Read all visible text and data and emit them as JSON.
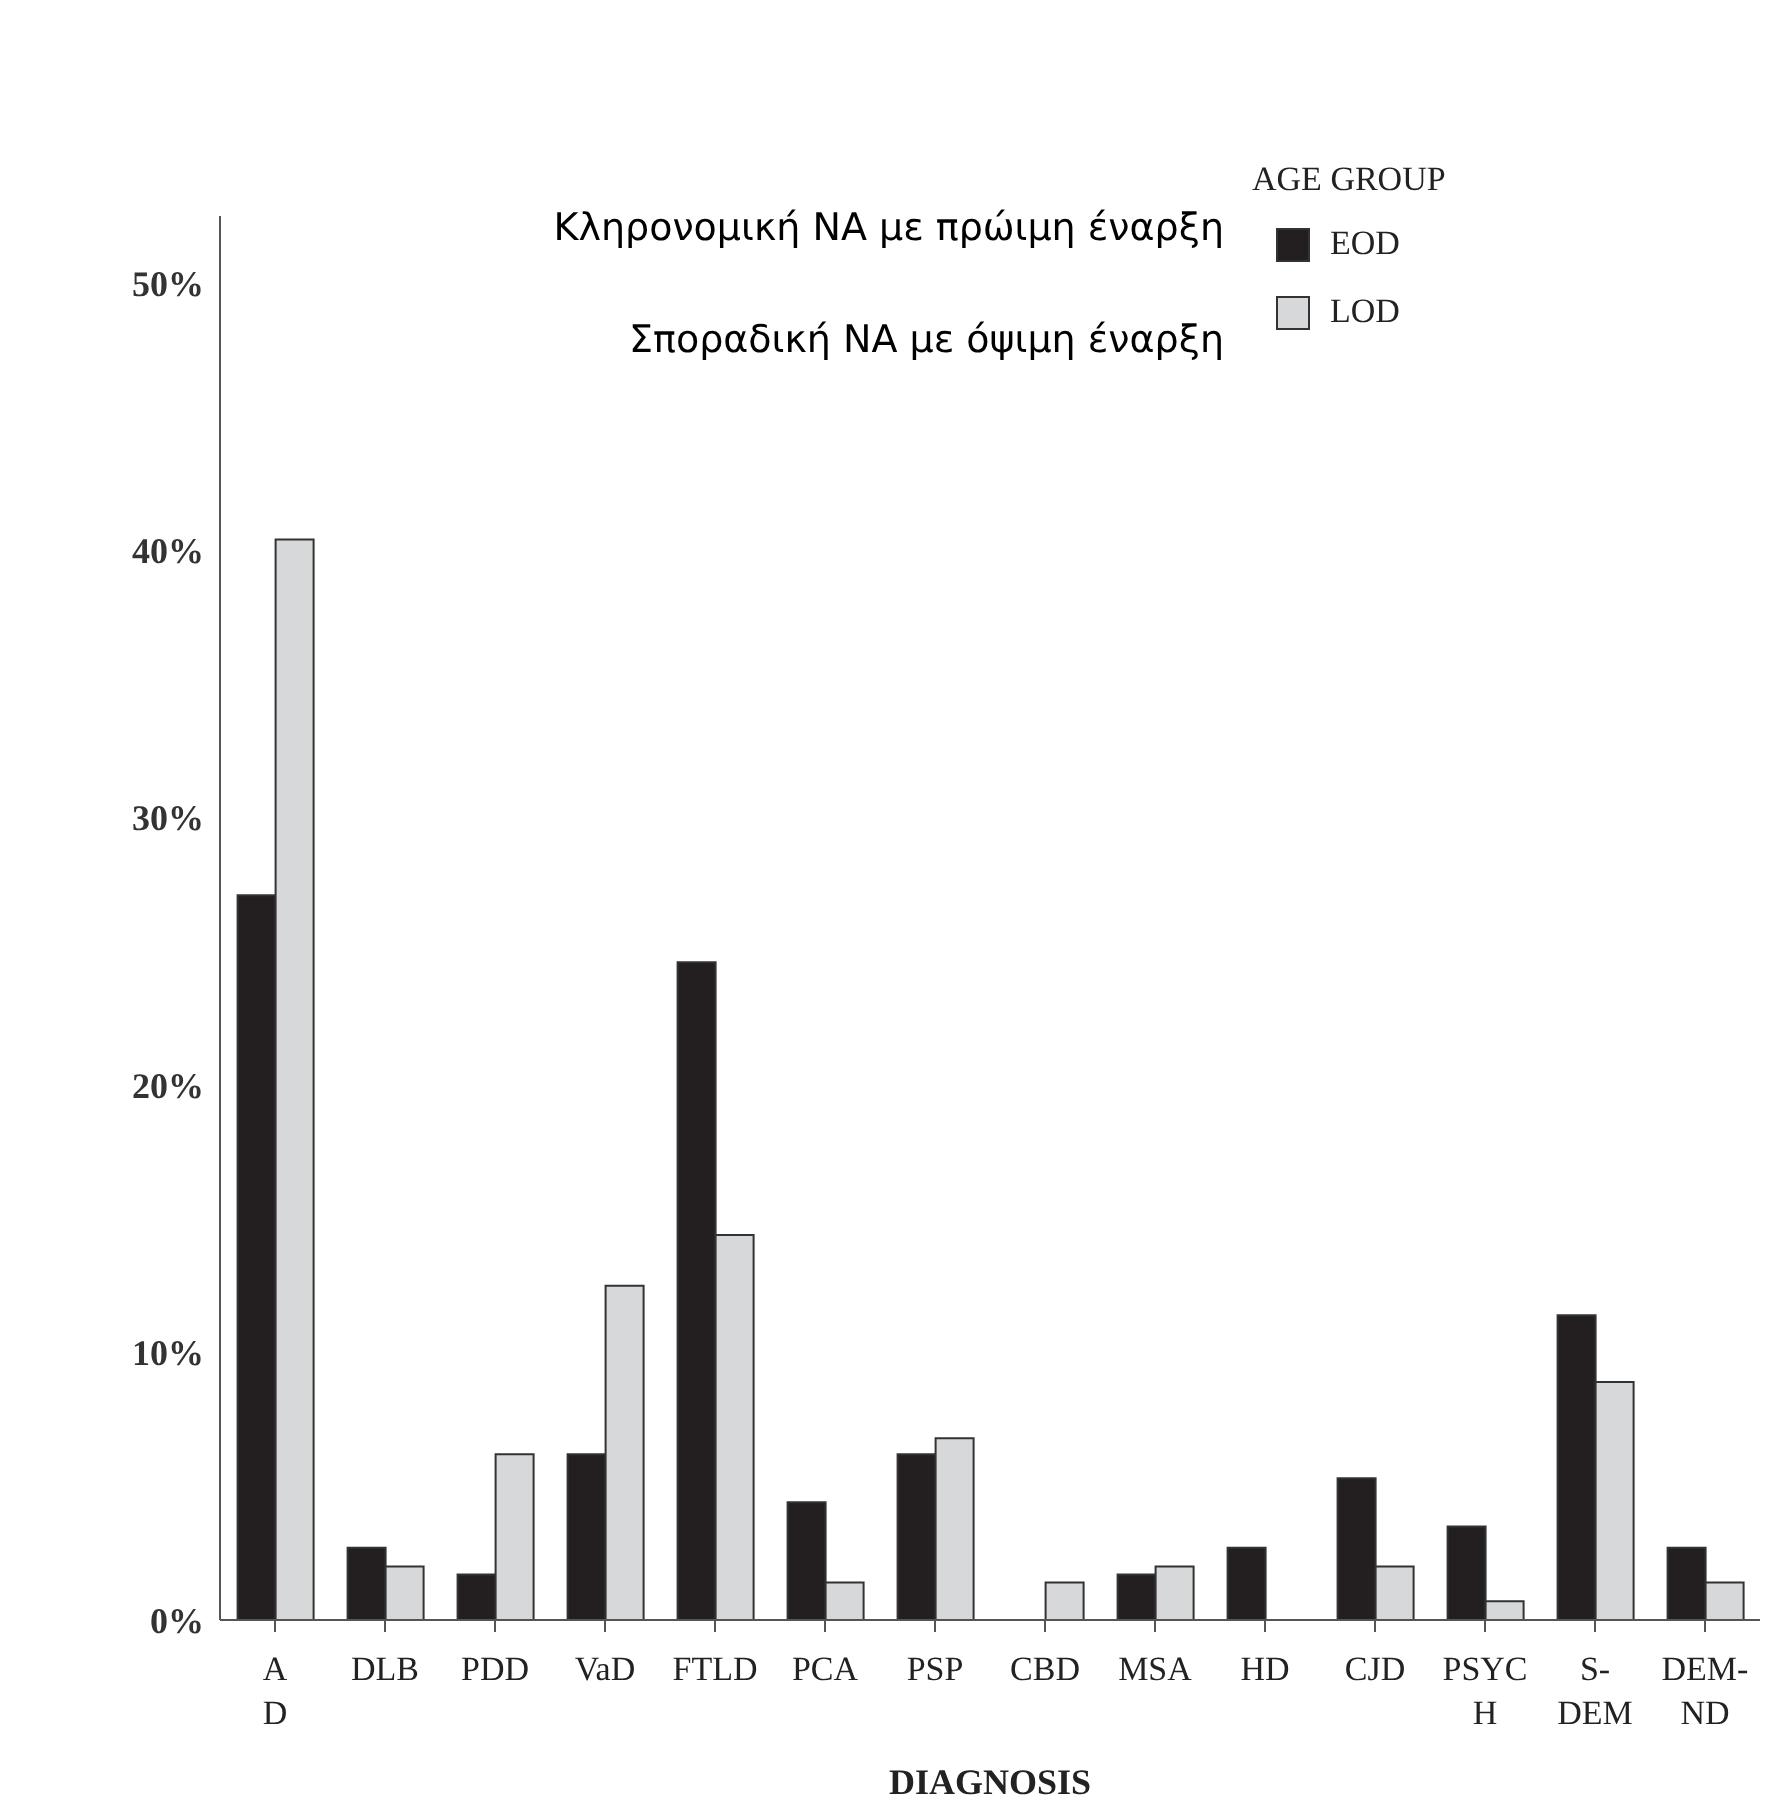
{
  "chart_data": {
    "type": "bar",
    "xlabel": "DIAGNOSIS",
    "legend_title": "AGE GROUP",
    "legend": "top right",
    "categories": [
      "A\nD",
      "DLB",
      "PDD",
      "VaD",
      "FTLD",
      "PCA",
      "PSP",
      "CBD",
      "MSA",
      "HD",
      "CJD",
      "PSYC\nH",
      "S-\nDEM",
      "DEM-\nND"
    ],
    "series": [
      {
        "name": "EOD",
        "color": "#231f20",
        "values": [
          27.1,
          2.7,
          1.7,
          6.2,
          24.6,
          4.4,
          6.2,
          0,
          1.7,
          2.7,
          5.3,
          3.5,
          11.4,
          2.7
        ]
      },
      {
        "name": "LOD",
        "color": "#d7d8da",
        "values": [
          40.4,
          2.0,
          6.2,
          12.5,
          14.4,
          1.4,
          6.8,
          1.4,
          2.0,
          0,
          2.0,
          0.7,
          8.9,
          1.4
        ]
      }
    ],
    "ylim": [
      0,
      52.5
    ],
    "yticks": [
      {
        "value": 0,
        "label": "0%"
      },
      {
        "value": 10,
        "label": "10%"
      },
      {
        "value": 20,
        "label": "20%"
      },
      {
        "value": 30,
        "label": "30%"
      },
      {
        "value": 40,
        "label": "40%"
      },
      {
        "value": 50,
        "label": "50%"
      }
    ],
    "grid": false,
    "annotations": [
      "Κληρονομική ΝΑ με πρώιμη έναρξη",
      "Σποραδική ΝΑ με όψιμη έναρξη"
    ]
  }
}
